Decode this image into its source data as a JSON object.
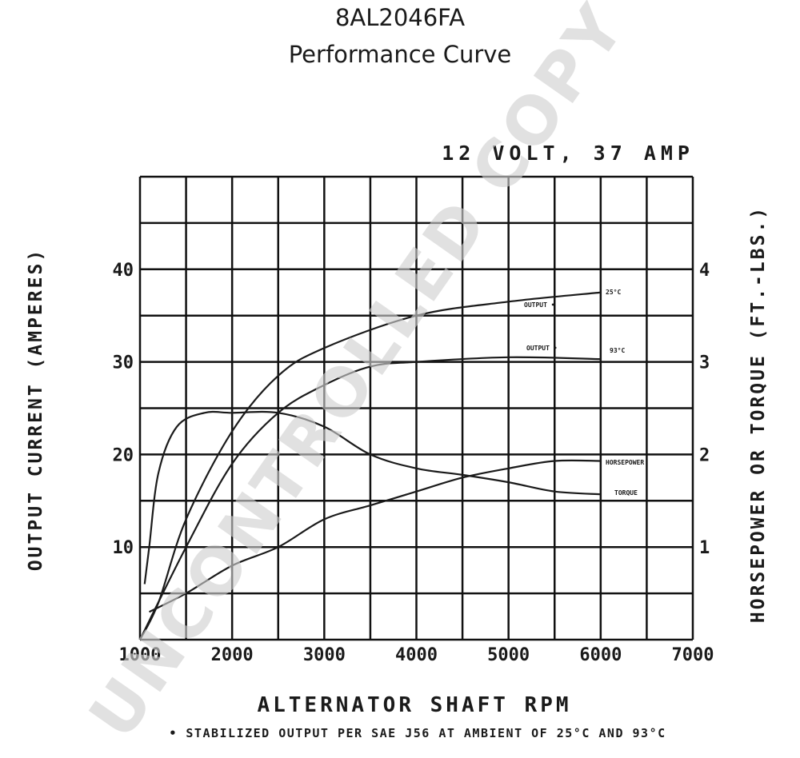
{
  "header": {
    "model": "8AL2046FA",
    "title": "Performance Curve"
  },
  "watermark": "UNCONTROLLED COPY",
  "chart_data": {
    "type": "line",
    "subtitle": "12 VOLT, 37 AMP",
    "xlabel": "ALTERNATOR SHAFT RPM",
    "ylabel_left": "OUTPUT CURRENT (AMPERES)",
    "ylabel_right": "HORSEPOWER OR TORQUE (FT.-LBS.)",
    "footnote": "• STABILIZED OUTPUT PER SAE J56 AT AMBIENT OF 25°C AND 93°C",
    "xlim": [
      1000,
      7000
    ],
    "ylim_left": [
      0,
      50
    ],
    "ylim_right": [
      0,
      5
    ],
    "grid": true,
    "x_ticks": [
      1000,
      2000,
      3000,
      4000,
      5000,
      6000,
      7000
    ],
    "x_tick_labels": [
      "1000",
      "2000",
      "3000",
      "4000",
      "5000",
      "6000",
      "7000"
    ],
    "y_left_ticks": [
      10,
      20,
      30,
      40
    ],
    "y_left_tick_labels": [
      "10",
      "20",
      "30",
      "40"
    ],
    "y_right_ticks": [
      1,
      2,
      3,
      4
    ],
    "y_right_tick_labels": [
      "1",
      "2",
      "3",
      "4"
    ],
    "series": [
      {
        "name": "OUTPUT - 25°C",
        "label": "OUTPUT •",
        "temp_label": "25°C",
        "axis": "left",
        "x": [
          1000,
          1200,
          1500,
          2000,
          2500,
          3000,
          4000,
          5000,
          6000
        ],
        "y": [
          0,
          4,
          13,
          22.5,
          28.5,
          31.5,
          35,
          36.5,
          37.5
        ]
      },
      {
        "name": "OUTPUT - 93°C",
        "label": "OUTPUT •",
        "temp_label": "93°C",
        "axis": "left",
        "x": [
          1000,
          1500,
          2000,
          2500,
          3000,
          3500,
          4000,
          5000,
          6000
        ],
        "y": [
          0,
          10,
          19,
          24.5,
          27.5,
          29.5,
          30,
          30.5,
          30.3
        ]
      },
      {
        "name": "HORSEPOWER",
        "label": "HORSEPOWER",
        "axis": "right",
        "x": [
          1100,
          1500,
          2000,
          2500,
          3000,
          3500,
          4000,
          4500,
          5000,
          5500,
          6000
        ],
        "y": [
          0.3,
          0.5,
          0.8,
          1.0,
          1.3,
          1.45,
          1.6,
          1.75,
          1.85,
          1.93,
          1.93
        ]
      },
      {
        "name": "TORQUE",
        "label": "TORQUE",
        "axis": "right",
        "x": [
          1050,
          1100,
          1200,
          1400,
          1700,
          2000,
          2500,
          3000,
          3500,
          4000,
          4500,
          5000,
          5500,
          6000
        ],
        "y": [
          0.6,
          1.0,
          1.8,
          2.3,
          2.45,
          2.45,
          2.45,
          2.3,
          2.0,
          1.85,
          1.78,
          1.7,
          1.6,
          1.57
        ]
      }
    ]
  }
}
